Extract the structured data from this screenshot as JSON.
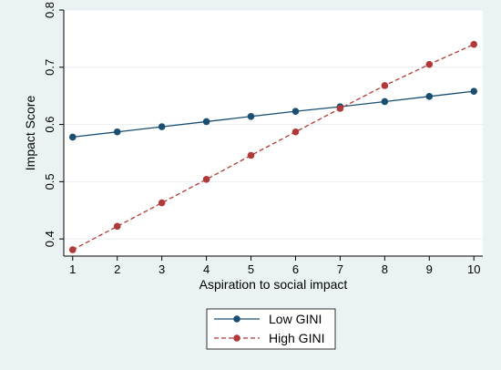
{
  "chart_data": {
    "type": "line",
    "xlabel": "Aspiration to social impact",
    "ylabel": "Impact Score",
    "x": [
      1,
      2,
      3,
      4,
      5,
      6,
      7,
      8,
      9,
      10
    ],
    "xticks": [
      "1",
      "2",
      "3",
      "4",
      "5",
      "6",
      "7",
      "8",
      "9",
      "10"
    ],
    "yticks": [
      "0.4",
      "0.5",
      "0.6",
      "0.7",
      "0.8"
    ],
    "xlim": [
      0.8,
      10.2
    ],
    "ylim": [
      0.37,
      0.8
    ],
    "grid": "horizontal",
    "legend_position": "bottom",
    "series": [
      {
        "name": "Low GINI",
        "color": "#1b4f72",
        "line_style": "solid",
        "values": [
          0.578,
          0.587,
          0.596,
          0.605,
          0.614,
          0.623,
          0.631,
          0.64,
          0.649,
          0.658
        ]
      },
      {
        "name": "High GINI",
        "color": "#b03a3a",
        "line_style": "dashed",
        "values": [
          0.381,
          0.422,
          0.463,
          0.504,
          0.546,
          0.587,
          0.628,
          0.668,
          0.705,
          0.74
        ]
      }
    ],
    "colors": {
      "outer_background": "#eaf2f3",
      "plot_background": "#ffffff",
      "grid": "#e9eef0",
      "axis": "#000000",
      "legend_border": "#000000"
    }
  }
}
